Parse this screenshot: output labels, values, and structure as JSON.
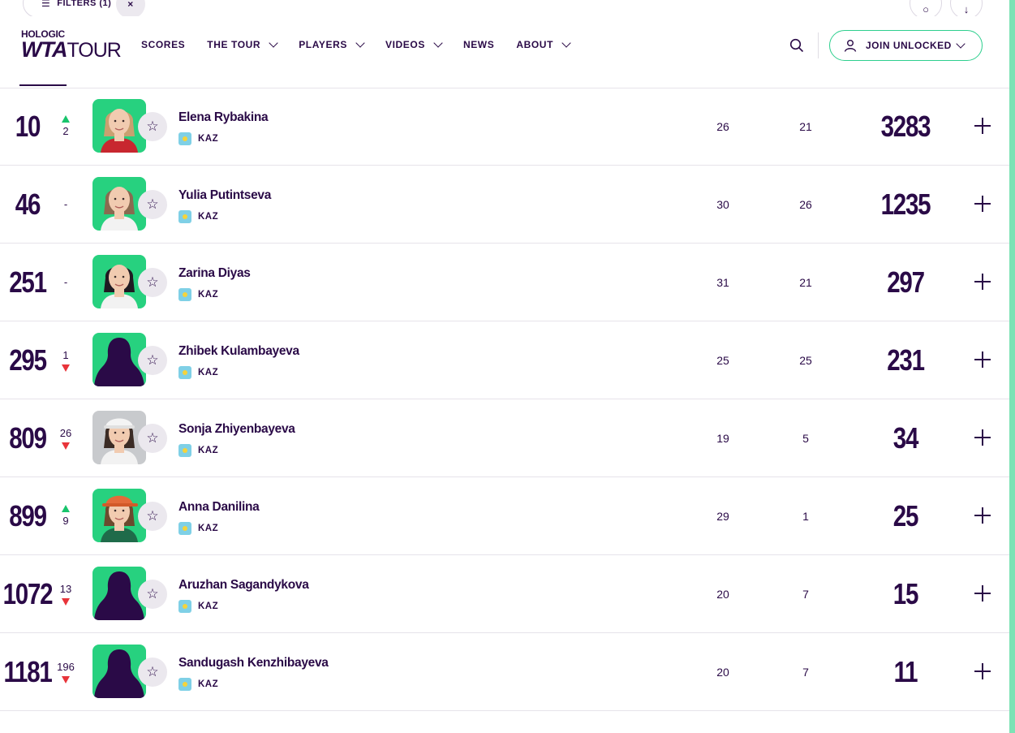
{
  "toolbar": {
    "filters_label": "FILTERS (1)",
    "clear_glyph": "×"
  },
  "header": {
    "logo_top": "HOLOGIC",
    "logo_wta": "WTA",
    "logo_tour": "TOUR",
    "nav": [
      {
        "label": "SCORES",
        "dropdown": false
      },
      {
        "label": "THE TOUR",
        "dropdown": true
      },
      {
        "label": "PLAYERS",
        "dropdown": true
      },
      {
        "label": "VIDEOS",
        "dropdown": true
      },
      {
        "label": "NEWS",
        "dropdown": false
      },
      {
        "label": "ABOUT",
        "dropdown": true
      }
    ],
    "join_label": "JOIN UNLOCKED"
  },
  "colors": {
    "brand": "#2a0a47",
    "accent_green": "#27d17f",
    "up": "#18c46c",
    "down": "#e8343a"
  },
  "players": [
    {
      "rank": "10",
      "move": "2",
      "dir": "up",
      "name": "Elena Rybakina",
      "country": "KAZ",
      "played": "26",
      "counted": "21",
      "points": "3283",
      "photo": "woman-blonde"
    },
    {
      "rank": "46",
      "move": "-",
      "dir": "none",
      "name": "Yulia Putintseva",
      "country": "KAZ",
      "played": "30",
      "counted": "26",
      "points": "1235",
      "photo": "woman-brown"
    },
    {
      "rank": "251",
      "move": "-",
      "dir": "none",
      "name": "Zarina Diyas",
      "country": "KAZ",
      "played": "31",
      "counted": "21",
      "points": "297",
      "photo": "woman-dark"
    },
    {
      "rank": "295",
      "move": "1",
      "dir": "down",
      "name": "Zhibek Kulambayeva",
      "country": "KAZ",
      "played": "25",
      "counted": "25",
      "points": "231",
      "photo": "silhouette"
    },
    {
      "rank": "809",
      "move": "26",
      "dir": "down",
      "name": "Sonja Zhiyenbayeva",
      "country": "KAZ",
      "played": "19",
      "counted": "5",
      "points": "34",
      "photo": "woman-cap"
    },
    {
      "rank": "899",
      "move": "9",
      "dir": "up",
      "name": "Anna Danilina",
      "country": "KAZ",
      "played": "29",
      "counted": "1",
      "points": "25",
      "photo": "woman-orange-cap"
    },
    {
      "rank": "1072",
      "move": "13",
      "dir": "down",
      "name": "Aruzhan Sagandykova",
      "country": "KAZ",
      "played": "20",
      "counted": "7",
      "points": "15",
      "photo": "silhouette"
    },
    {
      "rank": "1181",
      "move": "196",
      "dir": "down",
      "name": "Sandugash Kenzhibayeva",
      "country": "KAZ",
      "played": "20",
      "counted": "7",
      "points": "11",
      "photo": "silhouette"
    }
  ]
}
